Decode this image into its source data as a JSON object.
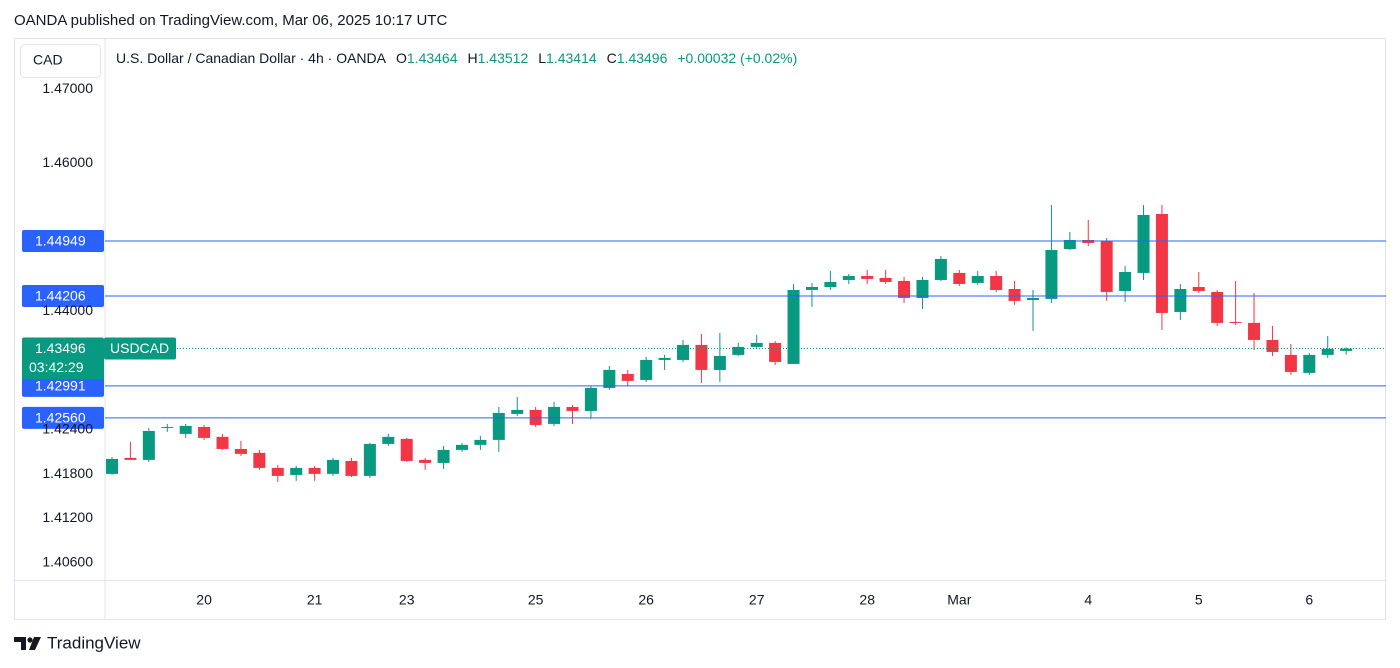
{
  "header": "OANDA published on TradingView.com, Mar 06, 2025 10:17 UTC",
  "brand": "TradingView",
  "chart_data": {
    "type": "candlestick",
    "title": "U.S. Dollar / Canadian Dollar · 4h · OANDA",
    "price_scale_currency": "CAD",
    "legend_fields": [
      {
        "label": "O",
        "value": 1.43464
      },
      {
        "label": "H",
        "value": 1.43512
      },
      {
        "label": "L",
        "value": 1.43414
      },
      {
        "label": "C",
        "value": 1.43496
      }
    ],
    "change": "+0.00032 (+0.02%)",
    "symbol": "USDCAD",
    "last_price": 1.43496,
    "countdown": "03:42:29",
    "up_color": "#089981",
    "down_color": "#f23645",
    "level_color": "#2962ff",
    "levels": [
      1.44949,
      1.44206,
      1.42991,
      {
        "value": 1.4256,
        "label": "1.42560"
      }
    ],
    "categories": [
      null,
      null,
      null,
      null,
      null,
      "20",
      null,
      null,
      null,
      null,
      null,
      "21",
      null,
      null,
      null,
      null,
      "23",
      null,
      null,
      null,
      null,
      null,
      null,
      "25",
      null,
      null,
      null,
      null,
      null,
      "26",
      null,
      null,
      null,
      null,
      null,
      "27",
      null,
      null,
      null,
      null,
      null,
      "28",
      null,
      null,
      null,
      null,
      "Mar",
      null,
      null,
      null,
      null,
      null,
      null,
      "4",
      null,
      null,
      null,
      null,
      null,
      "5",
      null,
      null,
      null,
      null,
      null,
      "6",
      null,
      null
    ],
    "open": [
      1.41803,
      1.42019,
      1.41992,
      1.42424,
      1.42343,
      1.42437,
      1.42303,
      1.4214,
      1.42087,
      1.41884,
      1.41789,
      1.41884,
      1.41803,
      1.41978,
      1.41776,
      1.42208,
      1.42276,
      1.41992,
      1.41951,
      1.42127,
      1.42195,
      1.42262,
      1.42613,
      1.42667,
      1.42478,
      1.42707,
      1.42653,
      1.42964,
      1.43153,
      1.43072,
      1.43342,
      1.43342,
      1.43545,
      1.43207,
      1.4341,
      1.43518,
      1.43572,
      1.43288,
      1.44287,
      1.44327,
      1.44422,
      1.44476,
      1.44449,
      1.44409,
      1.44179,
      1.44422,
      1.44517,
      1.44382,
      1.44476,
      1.443,
      1.44152,
      1.44166,
      1.4484,
      1.44962,
      1.44949,
      1.44273,
      1.44517,
      1.45313,
      1.4399,
      1.44327,
      1.4426,
      1.43855,
      1.43842,
      1.43612,
      1.4341,
      1.43167,
      1.4341,
      1.43464
    ],
    "high": [
      1.42032,
      1.42235,
      1.42424,
      1.42478,
      1.42478,
      1.42464,
      1.42343,
      1.42249,
      1.42127,
      1.41924,
      1.41911,
      1.41911,
      1.42019,
      1.42019,
      1.42222,
      1.42343,
      1.42289,
      1.42019,
      1.42181,
      1.42222,
      1.42316,
      1.42707,
      1.42842,
      1.42707,
      1.42775,
      1.42734,
      1.42991,
      1.43261,
      1.43207,
      1.43383,
      1.4341,
      1.43612,
      1.43693,
      1.43707,
      1.43572,
      1.4368,
      1.43599,
      1.44368,
      1.44382,
      1.44544,
      1.44503,
      1.44557,
      1.44557,
      1.44463,
      1.44463,
      1.44746,
      1.44557,
      1.44544,
      1.44544,
      1.44409,
      1.44287,
      1.45435,
      1.4507,
      1.45232,
      1.44989,
      1.44611,
      1.45435,
      1.45435,
      1.44368,
      1.4453,
      1.44287,
      1.44409,
      1.44247,
      1.43801,
      1.43558,
      1.43437,
      1.43666,
      1.43512
    ],
    "low": [
      1.41789,
      1.41992,
      1.41965,
      1.4237,
      1.42289,
      1.42262,
      1.42127,
      1.42046,
      1.41857,
      1.41695,
      1.41708,
      1.41708,
      1.41776,
      1.41762,
      1.41749,
      1.42181,
      1.41965,
      1.41857,
      1.4187,
      1.421,
      1.42127,
      1.421,
      1.42586,
      1.42437,
      1.42451,
      1.42478,
      1.42545,
      1.42937,
      1.42991,
      1.43045,
      1.43207,
      1.43315,
      1.43032,
      1.43045,
      1.43396,
      1.43491,
      1.43275,
      1.43288,
      1.44058,
      1.44287,
      1.44368,
      1.44368,
      1.44368,
      1.44112,
      1.44031,
      1.44409,
      1.44341,
      1.44355,
      1.4426,
      1.44085,
      1.43734,
      1.44112,
      1.44827,
      1.44881,
      1.44139,
      1.44125,
      1.44422,
      1.43747,
      1.43882,
      1.44247,
      1.43801,
      1.43815,
      1.43477,
      1.43396,
      1.4314,
      1.4314,
      1.43369,
      1.43414
    ],
    "close": [
      1.42005,
      1.41992,
      1.42383,
      1.42437,
      1.42451,
      1.42289,
      1.4214,
      1.42073,
      1.41884,
      1.41776,
      1.41884,
      1.41803,
      1.41992,
      1.41776,
      1.42208,
      1.42303,
      1.41978,
      1.41951,
      1.42127,
      1.42195,
      1.42262,
      1.42626,
      1.42667,
      1.42464,
      1.42707,
      1.42653,
      1.42964,
      1.43207,
      1.43059,
      1.43342,
      1.43369,
      1.43545,
      1.43207,
      1.43396,
      1.43518,
      1.43572,
      1.43315,
      1.44287,
      1.44327,
      1.44395,
      1.44476,
      1.44436,
      1.44395,
      1.44179,
      1.44422,
      1.44706,
      1.44368,
      1.44476,
      1.44287,
      1.44139,
      1.44179,
      1.44827,
      1.44962,
      1.44922,
      1.4426,
      1.4453,
      1.453,
      1.43977,
      1.443,
      1.44273,
      1.43842,
      1.43842,
      1.43612,
      1.4345,
      1.4318,
      1.4341,
      1.43491,
      1.43496
    ],
    "ylim": [
      1.4037,
      1.4769
    ],
    "yticks": [
      {
        "value": 1.47,
        "label": "1.47000"
      },
      {
        "value": 1.46,
        "label": "1.46000"
      },
      {
        "value": 1.44,
        "label": "1.44000"
      },
      {
        "value": 1.424,
        "label": "1.42400"
      },
      {
        "value": 1.418,
        "label": "1.41800"
      },
      {
        "value": 1.412,
        "label": "1.41200"
      },
      {
        "value": 1.406,
        "label": "1.40600"
      }
    ]
  }
}
